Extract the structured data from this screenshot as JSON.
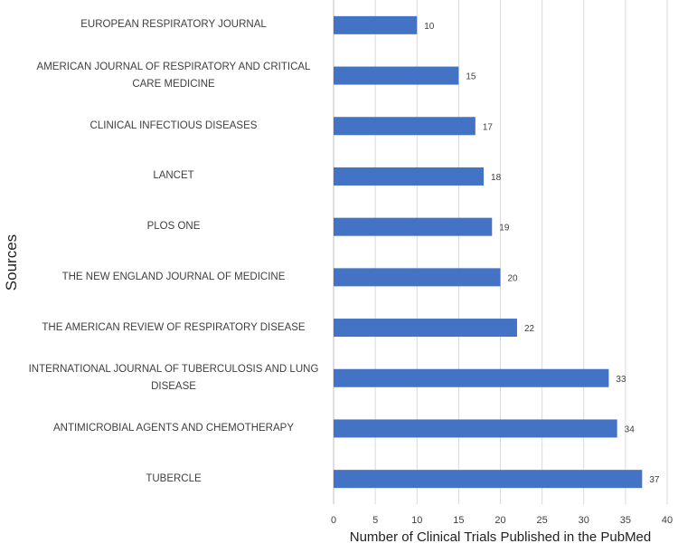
{
  "chart_data": {
    "type": "bar",
    "orientation": "horizontal",
    "categories": [
      "EUROPEAN RESPIRATORY JOURNAL",
      "AMERICAN JOURNAL OF RESPIRATORY AND CRITICAL CARE MEDICINE",
      "CLINICAL INFECTIOUS DISEASES",
      "LANCET",
      "PLOS ONE",
      "THE NEW ENGLAND JOURNAL OF MEDICINE",
      "THE AMERICAN REVIEW OF RESPIRATORY DISEASE",
      "INTERNATIONAL JOURNAL OF TUBERCULOSIS AND LUNG DISEASE",
      "ANTIMICROBIAL AGENTS AND CHEMOTHERAPY",
      "TUBERCLE"
    ],
    "values": [
      10,
      15,
      17,
      18,
      19,
      20,
      22,
      33,
      34,
      37
    ],
    "xlabel": "Number of Clinical Trials Published in the PubMed",
    "ylabel": "Sources",
    "xlim": [
      0,
      40
    ],
    "xticks": [
      0,
      5,
      10,
      15,
      20,
      25,
      30,
      35,
      40
    ],
    "grid": "vertical",
    "data_labels": true,
    "bar_color": "#4472c4"
  }
}
